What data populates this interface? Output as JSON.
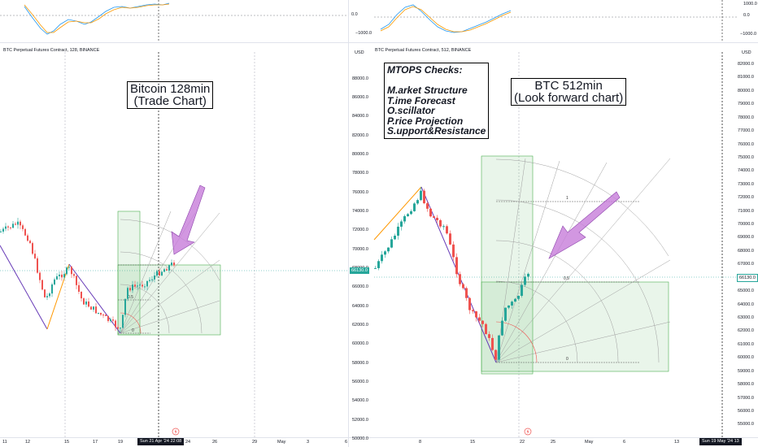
{
  "left_chart": {
    "title": "BTC Perpetual Futures Contract, 128, BINANCE",
    "annotation": "Bitcoin 128min\n(Trade Chart)",
    "x_ticks": [
      "11",
      "12",
      "15",
      "17",
      "19",
      "24",
      "26",
      "29",
      "May",
      "3",
      "6"
    ],
    "cursor_date": "Sun 21 Apr '24 22:08",
    "gann_labels": [
      "0",
      "0.5"
    ],
    "oscillator_levels": [
      "0.0"
    ]
  },
  "right_chart": {
    "title": "BTC Perpetual Futures Contract, 512, BINANCE",
    "annotation": "BTC 512min\n(Look forward chart)",
    "checks_title": "MTOPS Checks:",
    "checks": [
      "M.arket Structure",
      "T.ime Forecast",
      "O.scillator",
      "P.rice Projection",
      "S.upport&Resistance"
    ],
    "currency": "USD",
    "y_ticks_left": [
      "88000.0",
      "86000.0",
      "84000.0",
      "82000.0",
      "80000.0",
      "78000.0",
      "76000.0",
      "74000.0",
      "72000.0",
      "70000.0",
      "68000.0",
      "66000.0",
      "64000.0",
      "62000.0",
      "60000.0",
      "58000.0",
      "56000.0",
      "54000.0",
      "52000.0",
      "50000.0"
    ],
    "price_badge_left": "66130.0",
    "x_ticks": [
      "8",
      "15",
      "22",
      "25",
      "May",
      "6",
      "13"
    ],
    "gann_labels": [
      "1",
      "0.5",
      "0"
    ],
    "oscillator_levels": [
      "1000.0",
      "0.0",
      "−1000.0"
    ]
  },
  "far_right_axis": {
    "currency": "USD",
    "y_ticks": [
      "82000.0",
      "81000.0",
      "80000.0",
      "79000.0",
      "78000.0",
      "77000.0",
      "76000.0",
      "75000.0",
      "74000.0",
      "73000.0",
      "72000.0",
      "71000.0",
      "70000.0",
      "69000.0",
      "68000.0",
      "67000.0",
      "66000.0",
      "65000.0",
      "64000.0",
      "63000.0",
      "62000.0",
      "61000.0",
      "60000.0",
      "59000.0",
      "58000.0",
      "57000.0",
      "56000.0",
      "55000.0"
    ],
    "price_badge": "66130.0",
    "oscillator_levels": [
      "1000.0",
      "0.0",
      "−1000.0"
    ],
    "cursor_date": "Sun 19 May '24",
    "cursor_date_tail": "13"
  },
  "colors": {
    "up": "#26a69a",
    "down": "#ef5350",
    "gann_box": "#4caf50",
    "arrow": "#c77dd9",
    "impulse_up": "#ff9800",
    "impulse_down": "#673ab7",
    "grid": "#e0e3eb"
  }
}
